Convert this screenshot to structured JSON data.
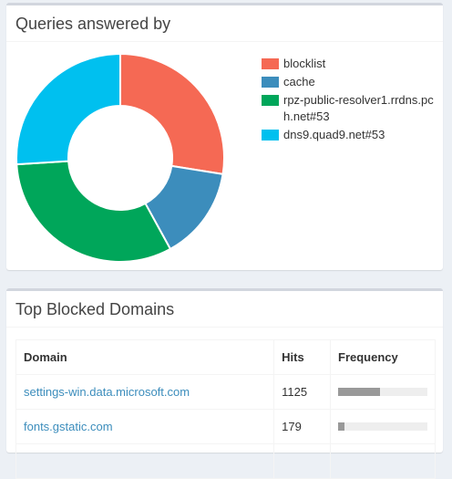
{
  "queries_panel": {
    "title": "Queries answered by"
  },
  "chart_data": {
    "type": "pie",
    "donut": true,
    "categories": [
      "blocklist",
      "cache",
      "rpz-public-resolver1.rrdns.pch.net#53",
      "dns9.quad9.net#53"
    ],
    "values": [
      27.5,
      14.5,
      32.0,
      26.0
    ],
    "colors": [
      "#f56954",
      "#3c8dbc",
      "#00a65a",
      "#00c0ef"
    ],
    "legend_position": "right"
  },
  "legend_colors": [
    "#f56954",
    "#3c8dbc",
    "#00a65a",
    "#00c0ef"
  ],
  "blocked_panel": {
    "title": "Top Blocked Domains",
    "columns": [
      "Domain",
      "Hits",
      "Frequency"
    ],
    "rows": [
      {
        "domain": "settings-win.data.microsoft.com",
        "hits": "1125",
        "frequency": 0.47
      },
      {
        "domain": "fonts.gstatic.com",
        "hits": "179",
        "frequency": 0.07
      },
      {
        "domain": "",
        "hits": "",
        "frequency": 0
      }
    ]
  }
}
